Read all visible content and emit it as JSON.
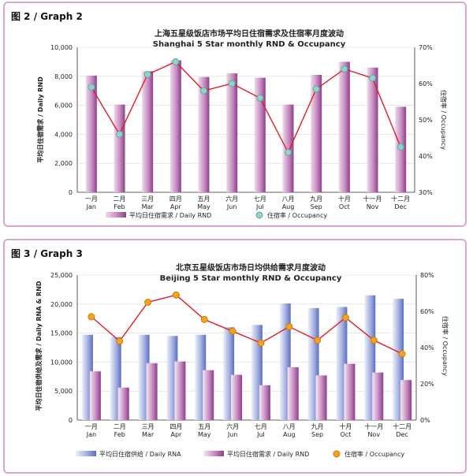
{
  "graph2": {
    "label": "图 2 / Graph 2",
    "colors": {
      "bar_dark": "#8e3f8a",
      "bar_light": "#efd9ec",
      "line": "#e31b23",
      "marker_fill": "#8fd3c9",
      "marker_stroke": "#ffffff",
      "grid": "#d9d9d9"
    },
    "chart_data": {
      "type": "bar",
      "title": "上海五星级饭店市场平均日住宿需求及住宿率月度波动",
      "subtitle": "Shanghai 5 Star monthly RND & Occupancy",
      "categories_cn": [
        "一月",
        "二月",
        "三月",
        "四月",
        "五月",
        "六月",
        "七月",
        "八月",
        "九月",
        "十月",
        "十一月",
        "十二月"
      ],
      "categories": [
        "Jan",
        "Feb",
        "Mar",
        "Apr",
        "May",
        "Jun",
        "Jul",
        "Aug",
        "Sep",
        "Oct",
        "Nov",
        "Dec"
      ],
      "ylabel": "平均日住宿需求 / Daily RND",
      "y2label": "住宿率 / Occupancy",
      "ylim": [
        0,
        10000
      ],
      "yticks": [
        "0",
        "2,000",
        "4,000",
        "6,000",
        "8,000",
        "10,000"
      ],
      "y2lim": [
        30,
        70
      ],
      "y2ticks": [
        "30%",
        "40%",
        "50%",
        "60%",
        "70%"
      ],
      "series": [
        {
          "name": "平均日住宿需求 / Daily RND",
          "type": "bar",
          "axis": "left",
          "values": [
            8050,
            6050,
            8350,
            9100,
            7950,
            8200,
            7900,
            6050,
            8100,
            9000,
            8600,
            5900
          ]
        },
        {
          "name": "住宿率 / Occupancy",
          "type": "line",
          "axis": "right",
          "values": [
            59,
            46,
            62.5,
            66,
            58,
            60,
            56,
            41,
            58.5,
            64,
            61.5,
            42.5
          ]
        }
      ],
      "grid": true,
      "legend": "bottom"
    }
  },
  "graph3": {
    "label": "图 3 / Graph 3",
    "colors": {
      "bar_blue_dark": "#5b6fc0",
      "bar_blue_light": "#eef0fa",
      "bar_dark": "#8e3f8a",
      "bar_light": "#efd9ec",
      "line": "#e31b23",
      "marker_fill": "#f5a21e",
      "marker_stroke": "#ffffff",
      "grid": "#d9d9d9"
    },
    "chart_data": {
      "type": "bar",
      "title": "北京五星级饭店市场日均供给需求月度波动",
      "subtitle": "Beijing 5 Star monthly RND & Occupancy",
      "categories_cn": [
        "一月",
        "二月",
        "三月",
        "四月",
        "五月",
        "六月",
        "七月",
        "八月",
        "九月",
        "十月",
        "十一月",
        "十二月"
      ],
      "categories": [
        "Jan",
        "Feb",
        "Mar",
        "Apr",
        "May",
        "Jun",
        "Jul",
        "Aug",
        "Sep",
        "Oct",
        "Nov",
        "Dec"
      ],
      "ylabel": "平均日住宿供给及需求 / Daily RNA & RND",
      "y2label": "住宿率 / Occupancy",
      "ylim": [
        0,
        25000
      ],
      "yticks": [
        "0",
        "5,000",
        "10,000",
        "15,000",
        "20,000",
        "25,000"
      ],
      "y2lim": [
        0,
        80
      ],
      "y2ticks": [
        "0%",
        "20%",
        "40%",
        "60%",
        "80%"
      ],
      "series": [
        {
          "name": "平均日住宿供给 / Daily RNA",
          "type": "bar",
          "axis": "left",
          "values": [
            14700,
            14300,
            14700,
            14500,
            14700,
            16000,
            16400,
            20100,
            19300,
            19500,
            21500,
            20900
          ]
        },
        {
          "name": "平均日住宿需求 / Daily RND",
          "type": "bar",
          "axis": "left",
          "values": [
            8400,
            5600,
            9800,
            10100,
            8600,
            7800,
            6000,
            9100,
            7700,
            9700,
            8200,
            6900
          ]
        },
        {
          "name": "住宿率 / Occupancy",
          "type": "line",
          "axis": "right",
          "values": [
            57,
            43.5,
            65,
            69,
            55.5,
            49,
            42.5,
            51.5,
            44,
            56.5,
            44,
            36.5
          ]
        }
      ],
      "grid": true,
      "legend": "bottom"
    }
  }
}
